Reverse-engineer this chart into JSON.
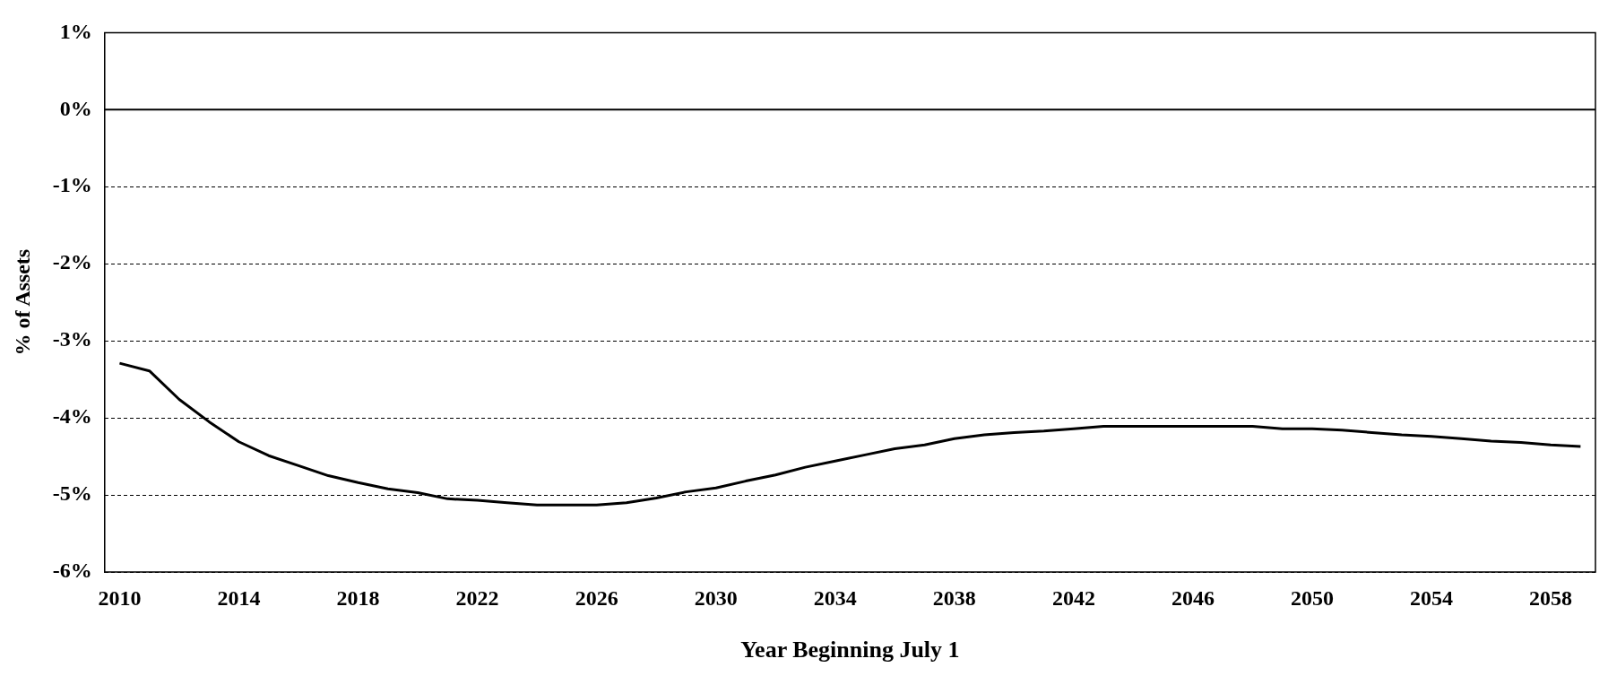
{
  "chart_data": {
    "type": "line",
    "xlabel": "Year Beginning July 1",
    "ylabel": "% of Assets",
    "categories": [
      "2010",
      null,
      null,
      null,
      "2014",
      null,
      null,
      null,
      "2018",
      null,
      null,
      null,
      "2022",
      null,
      null,
      null,
      "2026",
      null,
      null,
      null,
      "2030",
      null,
      null,
      null,
      "2034",
      null,
      null,
      null,
      "2038",
      null,
      null,
      null,
      "2042",
      null,
      null,
      null,
      "2046",
      null,
      null,
      null,
      "2050",
      null,
      null,
      null,
      "2054",
      null,
      null,
      null,
      "2058",
      null
    ],
    "series": [
      {
        "color": "#000000",
        "values": [
          -3.29,
          -3.39,
          -3.76,
          -4.05,
          -4.31,
          -4.49,
          -4.62,
          -4.75,
          -4.84,
          -4.92,
          -4.97,
          -5.05,
          -5.07,
          -5.1,
          -5.13,
          -5.13,
          -5.13,
          -5.1,
          -5.04,
          -4.96,
          -4.91,
          -4.82,
          -4.74,
          -4.64,
          -4.56,
          -4.48,
          -4.4,
          -4.35,
          -4.27,
          -4.22,
          -4.19,
          -4.17,
          -4.14,
          -4.11,
          -4.11,
          -4.11,
          -4.11,
          -4.11,
          -4.11,
          -4.14,
          -4.14,
          -4.16,
          -4.19,
          -4.22,
          -4.24,
          -4.27,
          -4.3,
          -4.32,
          -4.35,
          -4.37
        ]
      }
    ],
    "ylim": [
      -6,
      1
    ],
    "yticks": [
      {
        "value": -6,
        "label": "-6%"
      },
      {
        "value": -5,
        "label": "-5%"
      },
      {
        "value": -4,
        "label": "-4%"
      },
      {
        "value": -3,
        "label": "-3%"
      },
      {
        "value": -2,
        "label": "-2%"
      },
      {
        "value": -1,
        "label": "-1%"
      },
      {
        "value": 0,
        "label": "0%"
      },
      {
        "value": 1,
        "label": "1%"
      }
    ],
    "grid": "y",
    "legend": false,
    "marker": "none",
    "line_style": "solid",
    "ref_lines": [
      {
        "axis": "y",
        "value": 0,
        "color": "#000000",
        "line_style": "solid"
      }
    ]
  }
}
